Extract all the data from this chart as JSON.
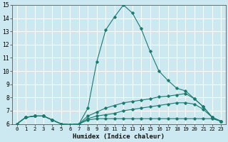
{
  "title": "",
  "xlabel": "Humidex (Indice chaleur)",
  "xlim": [
    -0.5,
    23.5
  ],
  "ylim": [
    6,
    15
  ],
  "background_color": "#cce8f0",
  "grid_color": "#ffffff",
  "line_color": "#1a7a6e",
  "lines": [
    {
      "x": [
        0,
        1,
        2,
        3,
        4,
        5,
        6,
        7,
        8,
        9,
        10,
        11,
        12,
        13,
        14,
        15,
        16,
        17,
        18,
        19,
        20,
        21,
        22,
        23
      ],
      "y": [
        6.0,
        6.5,
        6.6,
        6.6,
        6.3,
        6.0,
        5.95,
        6.0,
        7.2,
        10.7,
        13.1,
        14.1,
        15.0,
        14.4,
        13.2,
        11.5,
        10.0,
        9.3,
        8.7,
        8.5,
        7.9,
        7.3,
        6.5,
        6.2
      ]
    },
    {
      "x": [
        0,
        1,
        2,
        3,
        4,
        5,
        6,
        7,
        8,
        9,
        10,
        11,
        12,
        13,
        14,
        15,
        16,
        17,
        18,
        19,
        20,
        21,
        22,
        23
      ],
      "y": [
        6.0,
        6.5,
        6.6,
        6.6,
        6.3,
        6.0,
        5.95,
        6.0,
        6.6,
        6.9,
        7.2,
        7.4,
        7.6,
        7.7,
        7.8,
        7.9,
        8.05,
        8.1,
        8.2,
        8.3,
        7.9,
        7.3,
        6.5,
        6.2
      ]
    },
    {
      "x": [
        0,
        1,
        2,
        3,
        4,
        5,
        6,
        7,
        8,
        9,
        10,
        11,
        12,
        13,
        14,
        15,
        16,
        17,
        18,
        19,
        20,
        21,
        22,
        23
      ],
      "y": [
        6.0,
        6.5,
        6.6,
        6.6,
        6.3,
        6.0,
        5.95,
        6.0,
        6.4,
        6.6,
        6.7,
        6.8,
        7.0,
        7.1,
        7.2,
        7.3,
        7.4,
        7.5,
        7.6,
        7.6,
        7.5,
        7.1,
        6.5,
        6.2
      ]
    },
    {
      "x": [
        0,
        1,
        2,
        3,
        4,
        5,
        6,
        7,
        8,
        9,
        10,
        11,
        12,
        13,
        14,
        15,
        16,
        17,
        18,
        19,
        20,
        21,
        22,
        23
      ],
      "y": [
        6.0,
        6.5,
        6.6,
        6.6,
        6.3,
        6.0,
        5.95,
        6.0,
        6.3,
        6.4,
        6.4,
        6.4,
        6.4,
        6.4,
        6.4,
        6.4,
        6.4,
        6.4,
        6.4,
        6.4,
        6.4,
        6.4,
        6.4,
        6.2
      ]
    }
  ]
}
